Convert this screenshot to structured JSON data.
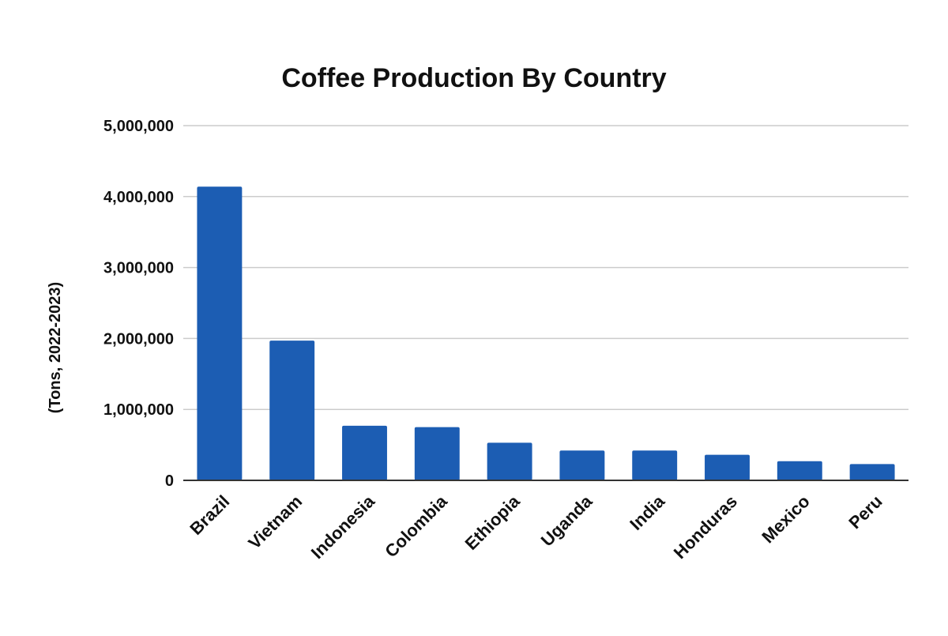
{
  "chart_data": {
    "type": "bar",
    "title": "Coffee Production By Country",
    "xlabel": "",
    "ylabel": "(Tons, 2022-2023)",
    "categories": [
      "Brazil",
      "Vietnam",
      "Indonesia",
      "Colombia",
      "Ethiopia",
      "Uganda",
      "India",
      "Honduras",
      "Mexico",
      "Peru"
    ],
    "series": [
      {
        "values": [
          4140000,
          1970000,
          770000,
          750000,
          530000,
          420000,
          420000,
          360000,
          270000,
          230000
        ]
      }
    ],
    "ylim": [
      0,
      5000000
    ],
    "yticks": [
      0,
      1000000,
      2000000,
      3000000,
      4000000,
      5000000
    ],
    "ytick_labels": [
      "0",
      "1,000,000",
      "2,000,000",
      "3,000,000",
      "4,000,000",
      "5,000,000"
    ],
    "grid": true,
    "legend": "none",
    "colors": {
      "bar": "#1c5db3",
      "grid": "#cccccc",
      "baseline": "#333333",
      "text": "#111111"
    }
  }
}
